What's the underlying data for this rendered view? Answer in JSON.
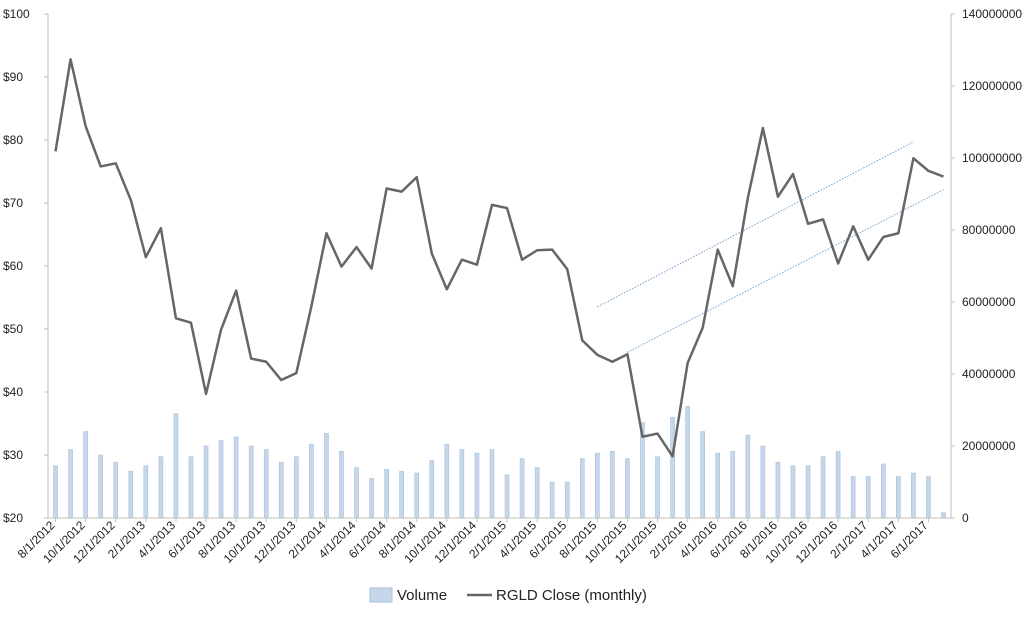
{
  "chart_data": {
    "type": "bar+line",
    "series_names": {
      "volume": "Volume",
      "close": "RGLD Close (monthly)"
    },
    "x": [
      "8/1/2012",
      "9/1/2012",
      "10/1/2012",
      "11/1/2012",
      "12/1/2012",
      "1/1/2013",
      "2/1/2013",
      "3/1/2013",
      "4/1/2013",
      "5/1/2013",
      "6/1/2013",
      "7/1/2013",
      "8/1/2013",
      "9/1/2013",
      "10/1/2013",
      "11/1/2013",
      "12/1/2013",
      "1/1/2014",
      "2/1/2014",
      "3/1/2014",
      "4/1/2014",
      "5/1/2014",
      "6/1/2014",
      "7/1/2014",
      "8/1/2014",
      "9/1/2014",
      "10/1/2014",
      "11/1/2014",
      "12/1/2014",
      "1/1/2015",
      "2/1/2015",
      "3/1/2015",
      "4/1/2015",
      "5/1/2015",
      "6/1/2015",
      "7/1/2015",
      "8/1/2015",
      "9/1/2015",
      "10/1/2015",
      "11/1/2015",
      "12/1/2015",
      "1/1/2016",
      "2/1/2016",
      "3/1/2016",
      "4/1/2016",
      "5/1/2016",
      "6/1/2016",
      "7/1/2016",
      "8/1/2016",
      "9/1/2016",
      "10/1/2016",
      "11/1/2016",
      "12/1/2016",
      "1/1/2017",
      "2/1/2017",
      "3/1/2017",
      "4/1/2017",
      "5/1/2017",
      "6/1/2017",
      "7/1/2017"
    ],
    "x_tick_labels": [
      "8/1/2012",
      "10/1/2012",
      "12/1/2012",
      "2/1/2013",
      "4/1/2013",
      "6/1/2013",
      "8/1/2013",
      "10/1/2013",
      "12/1/2013",
      "2/1/2014",
      "4/1/2014",
      "6/1/2014",
      "8/1/2014",
      "10/1/2014",
      "12/1/2014",
      "2/1/2015",
      "4/1/2015",
      "6/1/2015",
      "8/1/2015",
      "10/1/2015",
      "12/1/2015",
      "2/1/2016",
      "4/1/2016",
      "6/1/2016",
      "8/1/2016",
      "10/1/2016",
      "12/1/2016",
      "2/1/2017",
      "4/1/2017",
      "6/1/2017"
    ],
    "close": [
      78.2,
      92.8,
      82.2,
      75.8,
      76.3,
      70.5,
      61.4,
      66.0,
      51.7,
      51.0,
      39.7,
      49.9,
      56.1,
      45.3,
      44.8,
      41.9,
      43.0,
      53.6,
      65.2,
      59.9,
      63.0,
      59.6,
      72.3,
      71.8,
      74.1,
      62.0,
      56.3,
      61.0,
      60.2,
      69.7,
      69.2,
      61.0,
      62.5,
      62.6,
      59.5,
      48.2,
      45.9,
      44.8,
      46.0,
      32.9,
      33.4,
      29.8,
      44.6,
      50.2,
      62.6,
      56.8,
      70.8,
      81.9,
      71.0,
      74.6,
      66.7,
      67.4,
      60.4,
      66.3,
      61.0,
      64.6,
      65.2,
      77.1,
      75.1,
      74.2
    ],
    "volume": [
      14500000,
      19000000,
      24000000,
      17500000,
      15500000,
      13000000,
      14500000,
      17000000,
      29000000,
      17000000,
      20000000,
      21500000,
      22500000,
      20000000,
      19000000,
      15500000,
      17000000,
      20500000,
      23500000,
      18500000,
      14000000,
      11000000,
      13500000,
      13000000,
      12500000,
      16000000,
      20500000,
      19000000,
      18000000,
      19000000,
      12000000,
      16500000,
      14000000,
      10000000,
      10000000,
      16500000,
      18000000,
      18500000,
      16500000,
      26500000,
      17000000,
      28000000,
      31000000,
      24000000,
      18000000,
      18500000,
      23000000,
      20000000,
      15500000,
      14500000,
      14500000,
      17000000,
      18500000,
      11500000,
      11500000,
      15000000,
      11500000,
      12500000,
      11500000,
      1500000
    ],
    "y_left": {
      "min": 20,
      "max": 100,
      "step": 10,
      "tick_labels": [
        "$20",
        "$30",
        "$40",
        "$50",
        "$60",
        "$70",
        "$80",
        "$90",
        "$100"
      ]
    },
    "y_right": {
      "min": 0,
      "max": 140000000,
      "step": 20000000,
      "tick_labels": [
        "0",
        "20000000",
        "40000000",
        "60000000",
        "80000000",
        "100000000",
        "120000000",
        "140000000"
      ]
    },
    "trend_channel": {
      "upper": {
        "from": {
          "x": "8/1/2015",
          "y": 53.5
        },
        "to": {
          "x": "5/1/2017",
          "y": 79.7
        }
      },
      "lower": {
        "from": {
          "x": "10/1/2015",
          "y": 46.3
        },
        "to": {
          "x": "7/1/2017",
          "y": 72.1
        }
      }
    },
    "grid": false,
    "legend_position": "bottom-center",
    "colors": {
      "line": "#666666",
      "bar_fill": "#c5d7e8",
      "bar_stroke": "#a9c1d9",
      "trend": "#6fa0d8",
      "axis": "#bfbfbf"
    }
  }
}
